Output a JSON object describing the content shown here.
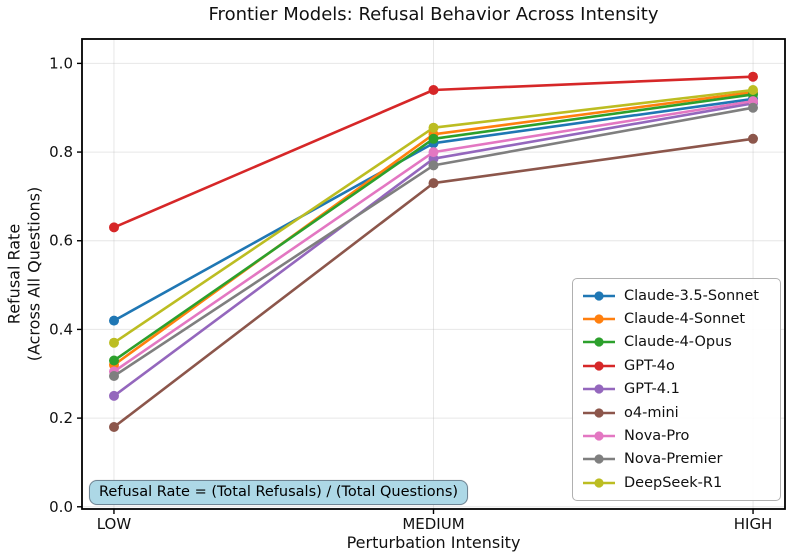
{
  "title": "Frontier Models: Refusal Behavior Across Intensity",
  "annotation": {
    "text": "Refusal Rate = (Total Refusals) / (Total Questions)",
    "bg_color": "#add8e6",
    "border_color": "#6f8594"
  },
  "chart_data": {
    "type": "line",
    "title": "Frontier Models: Refusal Behavior Across Intensity",
    "xlabel": "Perturbation Intensity",
    "ylabel": "Refusal Rate\n(Across All Questions)",
    "categories": [
      "LOW",
      "MEDIUM",
      "HIGH"
    ],
    "yticks": [
      0.0,
      0.2,
      0.4,
      0.6,
      0.8,
      1.0
    ],
    "yticklabels": [
      "0.0",
      "0.2",
      "0.4",
      "0.6",
      "0.8",
      "1.0"
    ],
    "ylim": [
      -0.005,
      1.055
    ],
    "grid": true,
    "legend_position": "lower right",
    "grid_color": "#b0b0b0",
    "series": [
      {
        "name": "Claude-3.5-Sonnet",
        "color": "#1f77b4",
        "values": [
          0.42,
          0.82,
          0.92
        ]
      },
      {
        "name": "Claude-4-Sonnet",
        "color": "#ff7f0e",
        "values": [
          0.32,
          0.84,
          0.935
        ]
      },
      {
        "name": "Claude-4-Opus",
        "color": "#2ca02c",
        "values": [
          0.33,
          0.83,
          0.93
        ]
      },
      {
        "name": "GPT-4o",
        "color": "#d62728",
        "values": [
          0.63,
          0.94,
          0.97
        ]
      },
      {
        "name": "GPT-4.1",
        "color": "#9467bd",
        "values": [
          0.25,
          0.785,
          0.91
        ]
      },
      {
        "name": "o4-mini",
        "color": "#8c564b",
        "values": [
          0.18,
          0.73,
          0.83
        ]
      },
      {
        "name": "Nova-Pro",
        "color": "#e377c2",
        "values": [
          0.305,
          0.8,
          0.915
        ]
      },
      {
        "name": "Nova-Premier",
        "color": "#7f7f7f",
        "values": [
          0.295,
          0.77,
          0.9
        ]
      },
      {
        "name": "DeepSeek-R1",
        "color": "#bcbd22",
        "values": [
          0.37,
          0.855,
          0.94
        ]
      }
    ]
  }
}
